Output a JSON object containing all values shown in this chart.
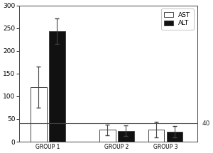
{
  "groups": [
    "GROUP 1",
    "GROUP 2",
    "GROUP 3"
  ],
  "ast_values": [
    120,
    26,
    27
  ],
  "alt_values": [
    244,
    24,
    22
  ],
  "ast_errors": [
    45,
    12,
    17
  ],
  "alt_errors": [
    28,
    12,
    13
  ],
  "ylim": [
    0,
    300
  ],
  "yticks": [
    0,
    50,
    100,
    150,
    200,
    250,
    300
  ],
  "hline_y": 40,
  "hline_label": "40",
  "bar_width": 0.28,
  "ast_color": "#ffffff",
  "alt_color": "#111111",
  "edge_color": "#444444",
  "background_color": "#ffffff",
  "legend_ast": "AST",
  "legend_alt": "ALT"
}
